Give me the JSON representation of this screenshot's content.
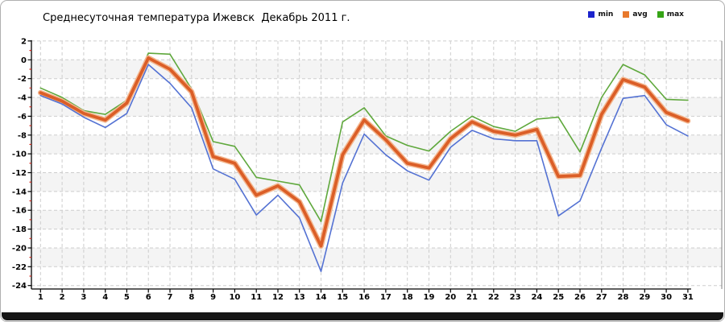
{
  "title": "Среднесуточная температура Ижевск  Декабрь 2011 г.",
  "legend": [
    {
      "label": "min",
      "color": "#1c24cc"
    },
    {
      "label": "avg",
      "color": "#e8792c"
    },
    {
      "label": "max",
      "color": "#36a416"
    }
  ],
  "axis_style": {
    "grid_color": "#cdcdcd",
    "band_color": "#f4f4f4",
    "axis_color": "#000000",
    "border_color": "#808080",
    "minor_tick_color": "#d02a1f",
    "label_color": "#000000"
  },
  "chart_data": {
    "type": "line",
    "title": "Среднесуточная температура Ижевск  Декабрь 2011 г.",
    "xlabel": "",
    "ylabel": "",
    "ylim": [
      -24,
      2
    ],
    "ytick_step": 2,
    "grid": true,
    "legend_position": "top-right",
    "x": [
      1,
      2,
      3,
      4,
      5,
      6,
      7,
      8,
      9,
      10,
      11,
      12,
      13,
      14,
      15,
      16,
      17,
      18,
      19,
      20,
      21,
      22,
      23,
      24,
      25,
      26,
      27,
      28,
      29,
      30,
      31
    ],
    "series": [
      {
        "name": "max",
        "color": "#5fa83c",
        "width": 1.6,
        "values": [
          -3.0,
          -4.0,
          -5.4,
          -5.8,
          -4.3,
          0.7,
          0.6,
          -3.1,
          -8.7,
          -9.2,
          -12.5,
          -12.9,
          -13.3,
          -17.2,
          -6.6,
          -5.1,
          -8.1,
          -9.1,
          -9.7,
          -7.6,
          -6.0,
          -7.1,
          -7.6,
          -6.3,
          -6.1,
          -9.8,
          -4.0,
          -0.5,
          -1.6,
          -4.2,
          -4.3
        ]
      },
      {
        "name": "avg",
        "color": "#db5e27",
        "halo": "#f3b68e",
        "width": 3.8,
        "values": [
          -3.5,
          -4.4,
          -5.7,
          -6.4,
          -4.6,
          0.2,
          -1.0,
          -3.4,
          -10.3,
          -11.0,
          -14.4,
          -13.4,
          -15.1,
          -19.8,
          -10.1,
          -6.4,
          -8.5,
          -11.0,
          -11.5,
          -8.4,
          -6.6,
          -7.6,
          -8.0,
          -7.4,
          -12.4,
          -12.3,
          -5.8,
          -2.1,
          -2.9,
          -5.6,
          -6.5
        ]
      },
      {
        "name": "min",
        "color": "#5472d3",
        "width": 1.6,
        "values": [
          -3.8,
          -4.7,
          -6.1,
          -7.2,
          -5.7,
          -0.5,
          -2.5,
          -5.1,
          -11.6,
          -12.7,
          -16.5,
          -14.4,
          -16.8,
          -22.5,
          -13.1,
          -7.9,
          -10.1,
          -11.8,
          -12.8,
          -9.3,
          -7.5,
          -8.4,
          -8.6,
          -8.6,
          -16.6,
          -15.0,
          -9.4,
          -4.1,
          -3.8,
          -6.9,
          -8.1
        ]
      }
    ]
  }
}
